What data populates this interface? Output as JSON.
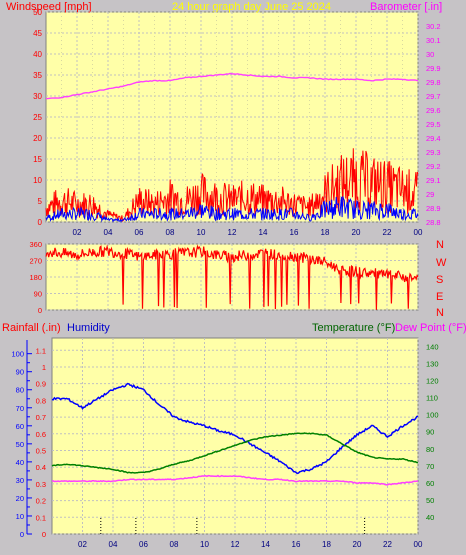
{
  "chart_data": [
    {
      "type": "line",
      "title": "24 hour graph day   June 25 2024",
      "left_axis_label": "Windspeed [mph]",
      "right_axis_label": "Barometer [.in]",
      "y_left": {
        "range": [
          0,
          50
        ],
        "ticks": [
          "0",
          "5",
          "10",
          "15",
          "20",
          "25",
          "30",
          "35",
          "40",
          "45",
          "50"
        ]
      },
      "y_right": {
        "range": [
          28.8,
          30.3
        ],
        "ticks": [
          "28.8",
          "28.9",
          "29",
          "29.1",
          "29.2",
          "29.3",
          "29.4",
          "29.5",
          "29.6",
          "29.7",
          "29.8",
          "29.9",
          "30",
          "30.1",
          "30.2"
        ]
      },
      "x": {
        "range": [
          0,
          24
        ],
        "ticks": [
          "02",
          "04",
          "06",
          "08",
          "10",
          "12",
          "14",
          "16",
          "18",
          "20",
          "22",
          "00"
        ]
      },
      "series": [
        {
          "name": "Barometer",
          "color": "#ff40ff",
          "axis": "right",
          "points": [
            [
              0,
              29.68
            ],
            [
              1,
              29.69
            ],
            [
              2,
              29.71
            ],
            [
              3,
              29.73
            ],
            [
              4,
              29.75
            ],
            [
              5,
              29.77
            ],
            [
              6,
              29.8
            ],
            [
              7,
              29.81
            ],
            [
              8,
              29.81
            ],
            [
              9,
              29.83
            ],
            [
              10,
              29.84
            ],
            [
              11,
              29.85
            ],
            [
              12,
              29.86
            ],
            [
              13,
              29.85
            ],
            [
              14,
              29.84
            ],
            [
              15,
              29.84
            ],
            [
              16,
              29.83
            ],
            [
              17,
              29.83
            ],
            [
              18,
              29.82
            ],
            [
              19,
              29.82
            ],
            [
              20,
              29.82
            ],
            [
              21,
              29.81
            ],
            [
              22,
              29.82
            ],
            [
              23,
              29.82
            ],
            [
              24,
              29.81
            ]
          ]
        },
        {
          "name": "Wind gust",
          "color": "#ff0000",
          "axis": "left",
          "points": [
            [
              0,
              4
            ],
            [
              1,
              6
            ],
            [
              2,
              5
            ],
            [
              3,
              5
            ],
            [
              4,
              2
            ],
            [
              5,
              1
            ],
            [
              6,
              6
            ],
            [
              7,
              5
            ],
            [
              8,
              7
            ],
            [
              9,
              6
            ],
            [
              10,
              8
            ],
            [
              11,
              7
            ],
            [
              12,
              6
            ],
            [
              13,
              7
            ],
            [
              14,
              6
            ],
            [
              15,
              6
            ],
            [
              16,
              5
            ],
            [
              17,
              4
            ],
            [
              18,
              8
            ],
            [
              19,
              11
            ],
            [
              20,
              12
            ],
            [
              21,
              11
            ],
            [
              22,
              10
            ],
            [
              23,
              9
            ],
            [
              24,
              8
            ]
          ]
        },
        {
          "name": "Wind speed",
          "color": "#0000ff",
          "axis": "left",
          "points": [
            [
              0,
              1
            ],
            [
              1,
              2
            ],
            [
              2,
              2
            ],
            [
              3,
              2
            ],
            [
              4,
              0.5
            ],
            [
              5,
              0.5
            ],
            [
              6,
              2
            ],
            [
              7,
              2
            ],
            [
              8,
              2
            ],
            [
              9,
              2
            ],
            [
              10,
              3
            ],
            [
              11,
              2
            ],
            [
              12,
              2
            ],
            [
              13,
              2
            ],
            [
              14,
              2
            ],
            [
              15,
              2
            ],
            [
              16,
              2
            ],
            [
              17,
              1
            ],
            [
              18,
              3
            ],
            [
              19,
              4
            ],
            [
              20,
              3
            ],
            [
              21,
              3
            ],
            [
              22,
              3
            ],
            [
              23,
              2
            ],
            [
              24,
              2
            ]
          ]
        }
      ]
    },
    {
      "type": "scatter",
      "right_labels": [
        "N",
        "W",
        "S",
        "E",
        "N"
      ],
      "y": {
        "range": [
          0,
          360
        ],
        "ticks": [
          "0",
          "90",
          "180",
          "270",
          "360"
        ]
      },
      "x": {
        "range": [
          0,
          24
        ]
      },
      "series": [
        {
          "name": "Wind direction",
          "color": "#ff0000",
          "points": [
            [
              0,
              320
            ],
            [
              1,
              310
            ],
            [
              2,
              300
            ],
            [
              3,
              315
            ],
            [
              4,
              320
            ],
            [
              5,
              310
            ],
            [
              6,
              290
            ],
            [
              7,
              300
            ],
            [
              8,
              305
            ],
            [
              9,
              310
            ],
            [
              10,
              320
            ],
            [
              11,
              300
            ],
            [
              12,
              290
            ],
            [
              13,
              300
            ],
            [
              14,
              310
            ],
            [
              15,
              300
            ],
            [
              16,
              295
            ],
            [
              17,
              280
            ],
            [
              18,
              260
            ],
            [
              19,
              220
            ],
            [
              20,
              210
            ],
            [
              21,
              200
            ],
            [
              22,
              190
            ],
            [
              23,
              180
            ],
            [
              24,
              175
            ]
          ]
        }
      ]
    },
    {
      "type": "line",
      "left_axis_label": "Rainfall (.in)",
      "left_axis_label2": "Humidity",
      "right_axis_label": "Temperature (°F)",
      "right_axis_label2": "Dew Point (°F)",
      "y_humidity": {
        "range": [
          0,
          100
        ],
        "ticks": [
          "0",
          "10",
          "20",
          "30",
          "40",
          "50",
          "60",
          "70",
          "80",
          "90",
          "100"
        ]
      },
      "y_rain": {
        "range": [
          0,
          1.15
        ],
        "ticks": [
          "0",
          "0.1",
          "0.2",
          "0.3",
          "0.4",
          "0.5",
          "0.6",
          "0.7",
          "0.8",
          "0.9",
          "1",
          "1.1"
        ]
      },
      "y_temp": {
        "range": [
          30,
          145
        ],
        "ticks": [
          "40",
          "50",
          "60",
          "70",
          "80",
          "90",
          "100",
          "110",
          "120",
          "130",
          "140"
        ]
      },
      "x": {
        "range": [
          0,
          24
        ],
        "ticks": [
          "02",
          "04",
          "06",
          "08",
          "10",
          "12",
          "14",
          "16",
          "18",
          "20",
          "22",
          "00"
        ]
      },
      "series": [
        {
          "name": "Humidity",
          "color": "#0000ff",
          "axis": "humidity",
          "points": [
            [
              0,
              75
            ],
            [
              1,
              75
            ],
            [
              2,
              70
            ],
            [
              3,
              75
            ],
            [
              4,
              80
            ],
            [
              5,
              83
            ],
            [
              6,
              80
            ],
            [
              7,
              72
            ],
            [
              8,
              65
            ],
            [
              9,
              62
            ],
            [
              10,
              60
            ],
            [
              11,
              57
            ],
            [
              12,
              55
            ],
            [
              13,
              50
            ],
            [
              14,
              45
            ],
            [
              15,
              40
            ],
            [
              16,
              34
            ],
            [
              17,
              36
            ],
            [
              18,
              40
            ],
            [
              19,
              48
            ],
            [
              20,
              55
            ],
            [
              21,
              60
            ],
            [
              22,
              54
            ],
            [
              23,
              60
            ],
            [
              24,
              65
            ]
          ]
        },
        {
          "name": "Temperature",
          "color": "#008000",
          "axis": "temp",
          "points": [
            [
              0,
              70
            ],
            [
              1,
              71
            ],
            [
              2,
              70
            ],
            [
              3,
              69
            ],
            [
              4,
              68
            ],
            [
              5,
              66
            ],
            [
              6,
              66
            ],
            [
              7,
              68
            ],
            [
              8,
              71
            ],
            [
              9,
              73
            ],
            [
              10,
              76
            ],
            [
              11,
              79
            ],
            [
              12,
              82
            ],
            [
              13,
              85
            ],
            [
              14,
              87
            ],
            [
              15,
              88
            ],
            [
              16,
              89
            ],
            [
              17,
              89
            ],
            [
              18,
              88
            ],
            [
              19,
              83
            ],
            [
              20,
              78
            ],
            [
              21,
              75
            ],
            [
              22,
              74
            ],
            [
              23,
              74
            ],
            [
              24,
              72
            ]
          ]
        },
        {
          "name": "Dew Point",
          "color": "#ff40ff",
          "axis": "temp",
          "points": [
            [
              0,
              61
            ],
            [
              1,
              61
            ],
            [
              2,
              61
            ],
            [
              3,
              61
            ],
            [
              4,
              61
            ],
            [
              5,
              62
            ],
            [
              6,
              62
            ],
            [
              7,
              62
            ],
            [
              8,
              62
            ],
            [
              9,
              63
            ],
            [
              10,
              64
            ],
            [
              11,
              64
            ],
            [
              12,
              64
            ],
            [
              13,
              63
            ],
            [
              14,
              62
            ],
            [
              15,
              62
            ],
            [
              16,
              61
            ],
            [
              17,
              61
            ],
            [
              18,
              61
            ],
            [
              19,
              61
            ],
            [
              20,
              60
            ],
            [
              21,
              60
            ],
            [
              22,
              59
            ],
            [
              23,
              60
            ],
            [
              24,
              61
            ]
          ]
        }
      ],
      "rain_marks": [
        3.2,
        5.5,
        9.5,
        20.5
      ]
    }
  ]
}
